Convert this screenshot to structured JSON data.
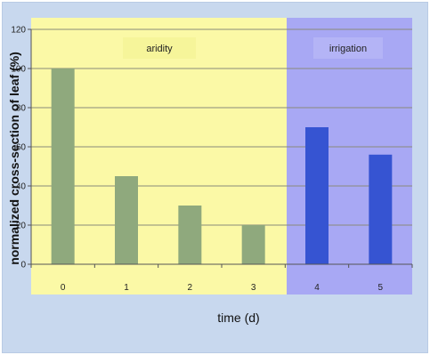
{
  "chart_data": {
    "type": "bar",
    "ylabel": "normalized cross-section of leaf (%)",
    "xlabel": "time (d)",
    "ylim": [
      0,
      120
    ],
    "y_ticks": [
      0,
      20,
      40,
      60,
      80,
      100,
      120
    ],
    "categories": [
      "0",
      "1",
      "2",
      "3",
      "4",
      "5"
    ],
    "values": [
      100,
      45,
      30,
      20,
      70,
      56
    ],
    "grid": true,
    "phases": [
      {
        "label": "aridity",
        "categories": [
          "0",
          "1",
          "2",
          "3"
        ],
        "background": "#fbf9a6",
        "bar_color": "#8fa97d"
      },
      {
        "label": "irrigation",
        "categories": [
          "4",
          "5"
        ],
        "background": "#a8a8f4",
        "bar_color": "#3654d2"
      }
    ]
  }
}
